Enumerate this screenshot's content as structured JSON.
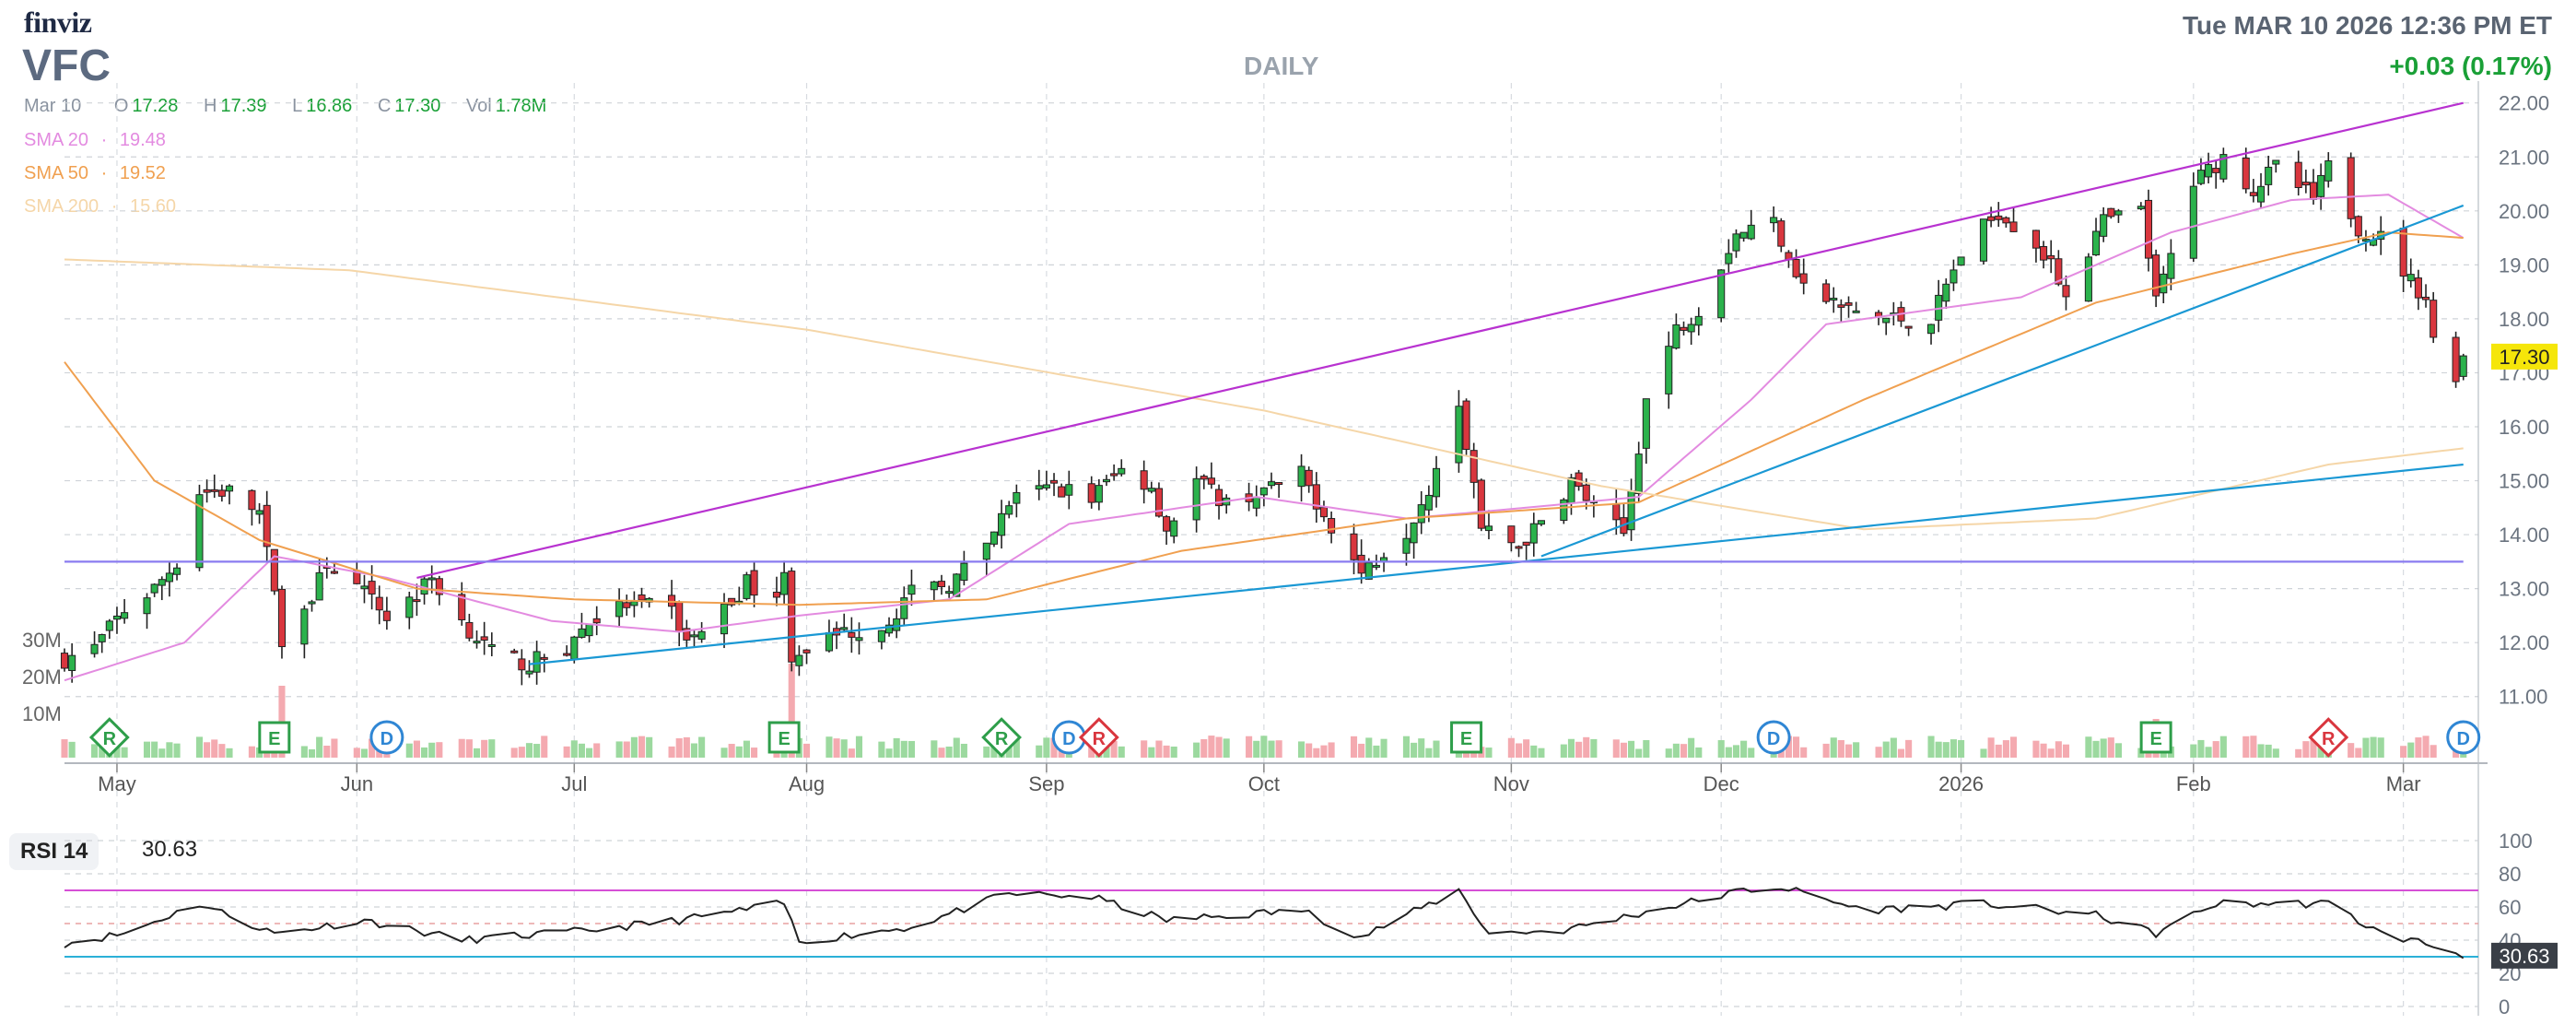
{
  "header": {
    "logo": "finviz",
    "ticker": "VFC",
    "timeframe": "DAILY",
    "datetime": "Tue MAR 10 2026 12:36 PM ET",
    "change": "+0.03 (0.17%)"
  },
  "ohlc": {
    "date": "Mar 10",
    "o_label": "O",
    "o": "17.28",
    "h_label": "H",
    "h": "17.39",
    "l_label": "L",
    "l": "16.86",
    "c_label": "C",
    "c": "17.30",
    "vol_label": "Vol",
    "vol": "1.78M"
  },
  "sma": [
    {
      "label": "SMA 20",
      "sep": "·",
      "value": "19.48",
      "color": "#e38be0"
    },
    {
      "label": "SMA 50",
      "sep": "·",
      "value": "19.52",
      "color": "#f0a050"
    },
    {
      "label": "SMA 200",
      "sep": "·",
      "value": "15.60",
      "color": "#f5d6a8"
    }
  ],
  "colors": {
    "up": "#2bb24c",
    "down": "#d9363e",
    "vol_up": "#9cd99f",
    "vol_down": "#f4aab0",
    "trend_purple": "#b832d0",
    "trend_blue": "#1a98d4",
    "hline": "#8a7cf0",
    "price_tag": "#f5e60a"
  },
  "last_price_tag": "17.30",
  "rsi": {
    "label": "RSI 14",
    "value": "30.63",
    "levels": [
      "100",
      "80",
      "60",
      "40",
      "20",
      "0"
    ],
    "overbought": 70,
    "oversold": 30
  },
  "volume_axis": [
    "30M",
    "20M",
    "10M"
  ],
  "events": [
    {
      "date": "2025-04-30",
      "type": "R",
      "shape": "diamond",
      "color": "#2e9e4a"
    },
    {
      "date": "2025-05-22",
      "type": "E",
      "shape": "square",
      "color": "#2e9e4a"
    },
    {
      "date": "2025-06-06",
      "type": "D",
      "shape": "circle",
      "color": "#2f86d4"
    },
    {
      "date": "2025-07-29",
      "type": "E",
      "shape": "square",
      "color": "#2e9e4a"
    },
    {
      "date": "2025-08-27",
      "type": "R",
      "shape": "diamond",
      "color": "#2e9e4a"
    },
    {
      "date": "2025-09-05",
      "type": "D",
      "shape": "circle",
      "color": "#2f86d4"
    },
    {
      "date": "2025-09-09",
      "type": "R",
      "shape": "diamond",
      "color": "#d9363e"
    },
    {
      "date": "2025-10-28",
      "type": "E",
      "shape": "square",
      "color": "#2e9e4a"
    },
    {
      "date": "2025-12-08",
      "type": "D",
      "shape": "circle",
      "color": "#2f86d4"
    },
    {
      "date": "2026-01-28",
      "type": "E",
      "shape": "square",
      "color": "#2e9e4a"
    },
    {
      "date": "2026-02-20",
      "type": "R",
      "shape": "diamond",
      "color": "#d9363e"
    },
    {
      "date": "2026-03-10",
      "type": "D",
      "shape": "circle",
      "color": "#2f86d4"
    }
  ],
  "chart_data": {
    "type": "candlestick",
    "title": "VFC",
    "ylim": [
      10.5,
      22.2
    ],
    "y_ticks": [
      "22.00",
      "21.00",
      "20.00",
      "19.00",
      "18.00",
      "17.00",
      "16.00",
      "15.00",
      "14.00",
      "13.00",
      "12.00",
      "11.00"
    ],
    "x_month_labels": [
      "May",
      "Jun",
      "Jul",
      "Aug",
      "Sep",
      "Oct",
      "Nov",
      "Dec",
      "2026",
      "Feb",
      "Mar"
    ],
    "x_month_dates": [
      "2025-05-01",
      "2025-06-02",
      "2025-07-01",
      "2025-08-01",
      "2025-09-02",
      "2025-10-01",
      "2025-11-03",
      "2025-12-01",
      "2026-01-02",
      "2026-02-02",
      "2026-03-02"
    ],
    "xlim": [
      "2025-04-24",
      "2026-03-12"
    ],
    "series": [
      {
        "name": "Price",
        "anchors": [
          [
            "2025-04-24",
            11.7
          ],
          [
            "2025-04-28",
            11.9
          ],
          [
            "2025-05-02",
            12.6
          ],
          [
            "2025-05-06",
            13.0
          ],
          [
            "2025-05-09",
            13.5
          ],
          [
            "2025-05-12",
            14.8
          ],
          [
            "2025-05-16",
            14.8
          ],
          [
            "2025-05-20",
            14.4
          ],
          [
            "2025-05-23",
            12.1
          ],
          [
            "2025-05-27",
            12.8
          ],
          [
            "2025-05-29",
            13.5
          ],
          [
            "2025-06-03",
            12.9
          ],
          [
            "2025-06-06",
            12.5
          ],
          [
            "2025-06-10",
            12.9
          ],
          [
            "2025-06-12",
            13.2
          ],
          [
            "2025-06-16",
            12.4
          ],
          [
            "2025-06-20",
            11.8
          ],
          [
            "2025-06-25",
            11.6
          ],
          [
            "2025-06-30",
            11.9
          ],
          [
            "2025-07-03",
            12.4
          ],
          [
            "2025-07-08",
            12.7
          ],
          [
            "2025-07-14",
            12.6
          ],
          [
            "2025-07-16",
            12.0
          ],
          [
            "2025-07-21",
            12.6
          ],
          [
            "2025-07-24",
            13.1
          ],
          [
            "2025-07-28",
            12.9
          ],
          [
            "2025-07-29",
            13.2
          ],
          [
            "2025-07-30",
            11.8
          ],
          [
            "2025-08-01",
            11.9
          ],
          [
            "2025-08-06",
            12.2
          ],
          [
            "2025-08-11",
            12.3
          ],
          [
            "2025-08-15",
            12.9
          ],
          [
            "2025-08-20",
            13.1
          ],
          [
            "2025-08-25",
            13.7
          ],
          [
            "2025-08-28",
            14.6
          ],
          [
            "2025-09-03",
            14.9
          ],
          [
            "2025-09-08",
            14.7
          ],
          [
            "2025-09-12",
            15.2
          ],
          [
            "2025-09-16",
            14.9
          ],
          [
            "2025-09-18",
            14.1
          ],
          [
            "2025-09-22",
            15.0
          ],
          [
            "2025-09-26",
            14.6
          ],
          [
            "2025-10-01",
            14.8
          ],
          [
            "2025-10-06",
            15.1
          ],
          [
            "2025-10-09",
            14.4
          ],
          [
            "2025-10-14",
            13.3
          ],
          [
            "2025-10-20",
            14.1
          ],
          [
            "2025-10-23",
            14.9
          ],
          [
            "2025-10-27",
            16.5
          ],
          [
            "2025-10-30",
            14.1
          ],
          [
            "2025-11-04",
            13.8
          ],
          [
            "2025-11-07",
            14.2
          ],
          [
            "2025-11-11",
            15.0
          ],
          [
            "2025-11-14",
            14.5
          ],
          [
            "2025-11-18",
            14.0
          ],
          [
            "2025-11-21",
            16.5
          ],
          [
            "2025-11-25",
            17.8
          ],
          [
            "2025-11-28",
            18.2
          ],
          [
            "2025-12-03",
            19.6
          ],
          [
            "2025-12-08",
            19.8
          ],
          [
            "2025-12-12",
            18.6
          ],
          [
            "2025-12-17",
            18.2
          ],
          [
            "2025-12-23",
            18.0
          ],
          [
            "2025-12-29",
            18.0
          ],
          [
            "2026-01-02",
            19.2
          ],
          [
            "2026-01-07",
            20.0
          ],
          [
            "2026-01-12",
            19.4
          ],
          [
            "2026-01-16",
            18.5
          ],
          [
            "2026-01-21",
            19.8
          ],
          [
            "2026-01-26",
            20.0
          ],
          [
            "2026-01-28",
            18.3
          ],
          [
            "2026-02-02",
            20.5
          ],
          [
            "2026-02-06",
            21.0
          ],
          [
            "2026-02-10",
            20.4
          ],
          [
            "2026-02-13",
            20.8
          ],
          [
            "2026-02-18",
            20.2
          ],
          [
            "2026-02-20",
            20.8
          ],
          [
            "2026-02-24",
            19.7
          ],
          [
            "2026-02-27",
            19.5
          ],
          [
            "2026-03-03",
            18.7
          ],
          [
            "2026-03-05",
            18.4
          ],
          [
            "2026-03-06",
            17.6
          ],
          [
            "2026-03-09",
            17.0
          ],
          [
            "2026-03-10",
            17.3
          ]
        ]
      },
      {
        "name": "SMA 20",
        "anchors": [
          [
            "2025-04-24",
            11.3
          ],
          [
            "2025-05-10",
            12.0
          ],
          [
            "2025-05-22",
            13.6
          ],
          [
            "2025-06-06",
            13.2
          ],
          [
            "2025-06-28",
            12.4
          ],
          [
            "2025-07-15",
            12.2
          ],
          [
            "2025-07-31",
            12.5
          ],
          [
            "2025-08-20",
            12.8
          ],
          [
            "2025-09-05",
            14.2
          ],
          [
            "2025-09-30",
            14.7
          ],
          [
            "2025-10-20",
            14.3
          ],
          [
            "2025-11-05",
            14.5
          ],
          [
            "2025-11-20",
            14.7
          ],
          [
            "2025-12-05",
            16.5
          ],
          [
            "2025-12-15",
            17.9
          ],
          [
            "2026-01-10",
            18.4
          ],
          [
            "2026-01-30",
            19.6
          ],
          [
            "2026-02-15",
            20.2
          ],
          [
            "2026-02-28",
            20.3
          ],
          [
            "2026-03-10",
            19.5
          ]
        ]
      },
      {
        "name": "SMA 50",
        "anchors": [
          [
            "2025-04-24",
            17.2
          ],
          [
            "2025-05-06",
            15.0
          ],
          [
            "2025-05-20",
            13.9
          ],
          [
            "2025-06-10",
            13.0
          ],
          [
            "2025-07-01",
            12.8
          ],
          [
            "2025-07-31",
            12.7
          ],
          [
            "2025-08-25",
            12.8
          ],
          [
            "2025-09-20",
            13.7
          ],
          [
            "2025-10-20",
            14.3
          ],
          [
            "2025-11-20",
            14.6
          ],
          [
            "2025-12-20",
            16.5
          ],
          [
            "2026-01-20",
            18.3
          ],
          [
            "2026-02-15",
            19.2
          ],
          [
            "2026-02-28",
            19.6
          ],
          [
            "2026-03-10",
            19.5
          ]
        ]
      },
      {
        "name": "SMA 200",
        "anchors": [
          [
            "2025-04-24",
            19.1
          ],
          [
            "2025-06-01",
            18.9
          ],
          [
            "2025-08-01",
            17.8
          ],
          [
            "2025-10-01",
            16.3
          ],
          [
            "2025-11-15",
            14.9
          ],
          [
            "2025-12-20",
            14.1
          ],
          [
            "2026-01-20",
            14.3
          ],
          [
            "2026-02-20",
            15.3
          ],
          [
            "2026-03-10",
            15.6
          ]
        ]
      }
    ],
    "trendlines": [
      {
        "color": "purple",
        "from": [
          "2025-06-10",
          13.2
        ],
        "to": [
          "2026-03-10",
          22.0
        ]
      },
      {
        "color": "blue",
        "from": [
          "2025-06-25",
          11.6
        ],
        "to": [
          "2026-03-10",
          15.3
        ]
      },
      {
        "color": "blue",
        "from": [
          "2025-11-07",
          13.6
        ],
        "to": [
          "2026-03-10",
          20.1
        ]
      },
      {
        "color": "hline",
        "from": [
          "2025-04-24",
          13.5
        ],
        "to": [
          "2026-03-10",
          13.5
        ]
      }
    ],
    "volume_spikes": [
      [
        "2025-05-23",
        26
      ],
      [
        "2025-07-30",
        34
      ],
      [
        "2025-10-28",
        11
      ],
      [
        "2026-01-28",
        14
      ],
      [
        "2025-08-27",
        9
      ]
    ],
    "rsi_anchors": [
      [
        "2025-04-24",
        38
      ],
      [
        "2025-05-02",
        44
      ],
      [
        "2025-05-12",
        62
      ],
      [
        "2025-05-22",
        44
      ],
      [
        "2025-06-03",
        52
      ],
      [
        "2025-06-16",
        40
      ],
      [
        "2025-07-01",
        45
      ],
      [
        "2025-07-15",
        52
      ],
      [
        "2025-07-29",
        62
      ],
      [
        "2025-07-31",
        39
      ],
      [
        "2025-08-15",
        48
      ],
      [
        "2025-08-28",
        68
      ],
      [
        "2025-09-08",
        66
      ],
      [
        "2025-09-18",
        52
      ],
      [
        "2025-10-06",
        58
      ],
      [
        "2025-10-14",
        42
      ],
      [
        "2025-10-27",
        70
      ],
      [
        "2025-10-31",
        44
      ],
      [
        "2025-11-10",
        46
      ],
      [
        "2025-11-20",
        56
      ],
      [
        "2025-12-04",
        70
      ],
      [
        "2025-12-09",
        72
      ],
      [
        "2025-12-20",
        58
      ],
      [
        "2026-01-05",
        62
      ],
      [
        "2026-01-20",
        55
      ],
      [
        "2026-01-28",
        44
      ],
      [
        "2026-02-05",
        62
      ],
      [
        "2026-02-20",
        62
      ],
      [
        "2026-02-27",
        44
      ],
      [
        "2026-03-05",
        38
      ],
      [
        "2026-03-10",
        30.63
      ]
    ]
  }
}
